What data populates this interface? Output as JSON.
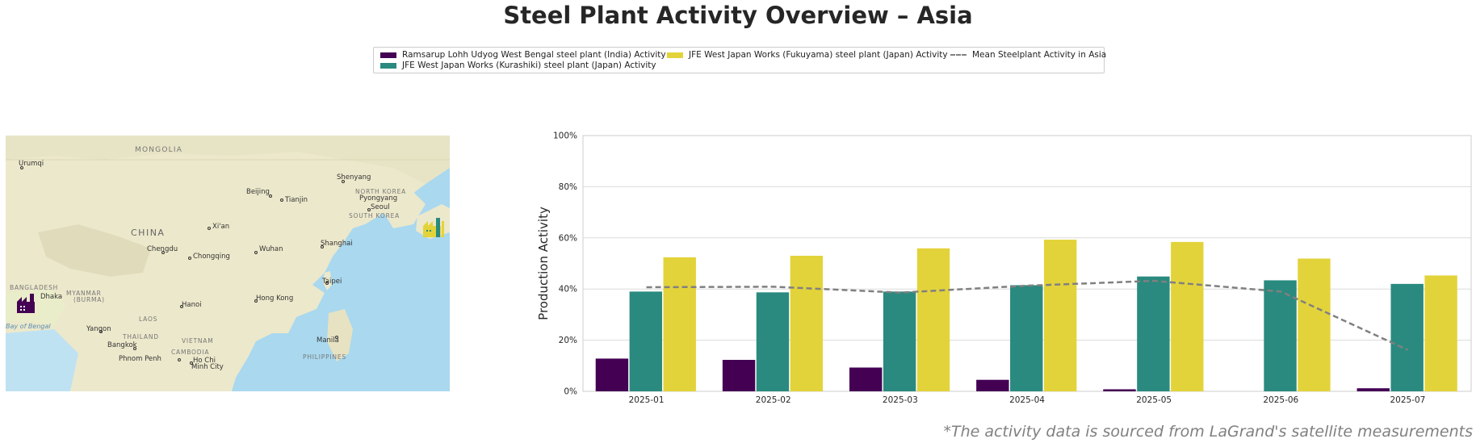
{
  "title": "Steel Plant Activity Overview – Asia",
  "source_note": "*The activity data is sourced from LaGrand's satellite measurements",
  "legend": {
    "items": [
      {
        "label": "Ramsarup Lohh Udyog West Bengal steel plant (India) Activity",
        "color": "#440154",
        "kind": "bar"
      },
      {
        "label": "JFE West Japan Works (Kurashiki) steel plant (Japan) Activity",
        "color": "#2a8a7f",
        "kind": "bar"
      },
      {
        "label": "JFE West Japan Works (Fukuyama) steel plant (Japan) Activity",
        "color": "#e3d33a",
        "kind": "bar"
      },
      {
        "label": "Mean Steelplant Activity in Asia",
        "color": "#808080",
        "kind": "dashed-line"
      }
    ]
  },
  "map": {
    "labels": {
      "mongolia": "MONGOLIA",
      "urumqi": "Urumqi",
      "china": "CHINA",
      "beijing": "Beijing",
      "tianjin": "Tianjin",
      "shenyang": "Shenyang",
      "north_korea": "NORTH KOREA",
      "pyongyang": "Pyongyang",
      "seoul": "Seoul",
      "south_korea": "SOUTH KOREA",
      "xian": "Xi'an",
      "chengdu": "Chengdu",
      "chongqing": "Chongqing",
      "wuhan": "Wuhan",
      "shanghai": "Shanghai",
      "taipei": "Taipei",
      "hong_kong": "Hong Kong",
      "hanoi": "Hanoi",
      "bangladesh": "BANGLADESH",
      "dhaka": "Dhaka",
      "myanmar": "MYANMAR",
      "burma": "(BURMA)",
      "laos": "LAOS",
      "yangon": "Yangon",
      "thailand": "THAILAND",
      "bangkok": "Bangkok",
      "vietnam": "VIETNAM",
      "cambodia": "CAMBODIA",
      "phnom_penh": "Phnom Penh",
      "ho_chi_minh": "Ho Chi",
      "minh_city": "Minh City",
      "manila": "Manila",
      "philippines": "PHILIPPINES",
      "bay_of_bengal": "Bay of Bengal"
    },
    "land_color": "#ece8cb",
    "water_color": "#a9d8ef",
    "plant_icons": [
      {
        "name": "India plant",
        "color": "#440154"
      },
      {
        "name": "Japan plants",
        "colors": [
          "#e3d33a",
          "#2a8a7f"
        ]
      }
    ]
  },
  "chart_data": {
    "type": "bar",
    "categories": [
      "2025-01",
      "2025-02",
      "2025-03",
      "2025-04",
      "2025-05",
      "2025-06",
      "2025-07"
    ],
    "series": [
      {
        "name": "Ramsarup Lohh Udyog West Bengal steel plant (India) Activity",
        "color": "#440154",
        "values": [
          12.8,
          12.3,
          9.3,
          4.5,
          0.8,
          null,
          1.2
        ]
      },
      {
        "name": "JFE West Japan Works (Kurashiki) steel plant (Japan) Activity",
        "color": "#2a8a7f",
        "values": [
          39.0,
          38.7,
          39.0,
          41.5,
          44.9,
          43.4,
          42.0
        ]
      },
      {
        "name": "JFE West Japan Works (Fukuyama) steel plant (Japan) Activity",
        "color": "#e3d33a",
        "values": [
          52.4,
          53.0,
          55.9,
          59.3,
          58.4,
          51.9,
          45.3
        ]
      }
    ],
    "mean_line": {
      "name": "Mean Steelplant Activity in Asia",
      "color": "#808080",
      "style": "dashed",
      "values": [
        40.7,
        40.9,
        38.6,
        41.3,
        43.2,
        39.0,
        16.2
      ]
    },
    "ylabel": "Production Activity",
    "xlabel": "",
    "ylim": [
      0,
      100
    ],
    "yticks": [
      0,
      20,
      40,
      60,
      80,
      100
    ],
    "ytick_format": "percent",
    "grid": "horizontal"
  }
}
